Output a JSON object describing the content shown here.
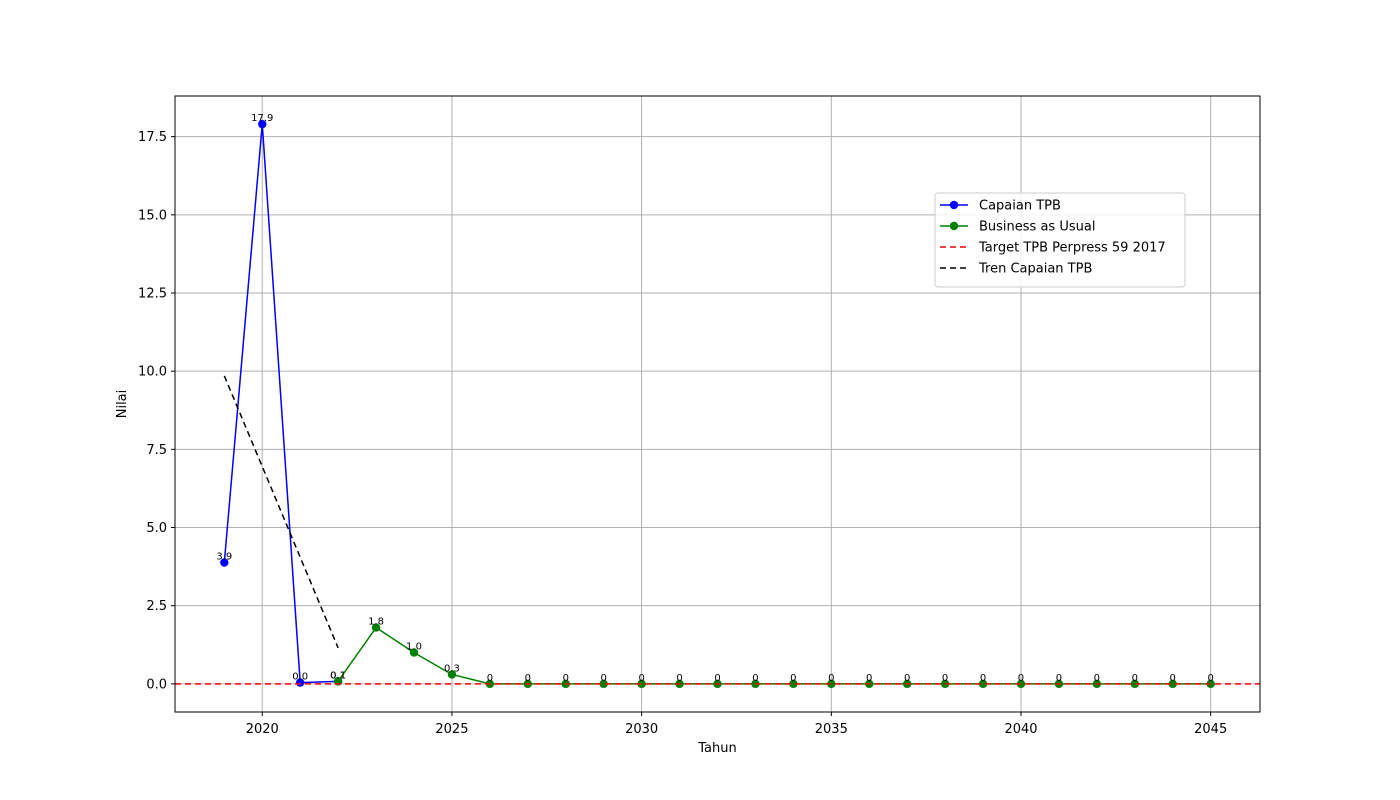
{
  "chart_data": {
    "type": "line",
    "xlabel": "Tahun",
    "ylabel": "Nilai",
    "xlim": [
      2017.7,
      2046.3
    ],
    "ylim": [
      -0.9,
      18.8
    ],
    "x_ticks": [
      2020,
      2025,
      2030,
      2035,
      2040,
      2045
    ],
    "y_ticks": [
      0.0,
      2.5,
      5.0,
      7.5,
      10.0,
      12.5,
      15.0,
      17.5
    ],
    "x_tick_labels": [
      "2020",
      "2025",
      "2030",
      "2035",
      "2040",
      "2045"
    ],
    "y_tick_labels": [
      "0.0",
      "2.5",
      "5.0",
      "7.5",
      "10.0",
      "12.5",
      "15.0",
      "17.5"
    ],
    "grid": true,
    "legend_position": "upper-right",
    "series": [
      {
        "name": "Capaian TPB",
        "color": "#0000ff",
        "style": "solid",
        "marker": "circle",
        "x": [
          2019,
          2020,
          2021,
          2022
        ],
        "y": [
          3.88,
          17.9,
          0.04,
          0.08
        ],
        "labels": [
          "3.9",
          "17.9",
          "0.0",
          "0.1"
        ]
      },
      {
        "name": "Business as Usual",
        "color": "#008000",
        "style": "solid",
        "marker": "circle",
        "x": [
          2022,
          2023,
          2024,
          2025,
          2026,
          2027,
          2028,
          2029,
          2030,
          2031,
          2032,
          2033,
          2034,
          2035,
          2036,
          2037,
          2038,
          2039,
          2040,
          2041,
          2042,
          2043,
          2044,
          2045
        ],
        "y": [
          0.08,
          1.8,
          1.0,
          0.3,
          0,
          0,
          0,
          0,
          0,
          0,
          0,
          0,
          0,
          0,
          0,
          0,
          0,
          0,
          0,
          0,
          0,
          0,
          0,
          0
        ],
        "labels": [
          "0.1",
          "1.8",
          "1.0",
          "0.3",
          "0",
          "0",
          "0",
          "0",
          "0",
          "0",
          "0",
          "0",
          "0",
          "0",
          "0",
          "0",
          "0",
          "0",
          "0",
          "0",
          "0",
          "0",
          "0",
          "0"
        ]
      },
      {
        "name": "Target TPB Perpress 59 2017",
        "color": "#ff0000",
        "style": "dashed",
        "type": "hline",
        "y": 0
      },
      {
        "name": "Tren Capaian TPB",
        "color": "#000000",
        "style": "dashed",
        "x": [
          2019,
          2022
        ],
        "y": [
          9.85,
          1.15
        ]
      }
    ]
  }
}
